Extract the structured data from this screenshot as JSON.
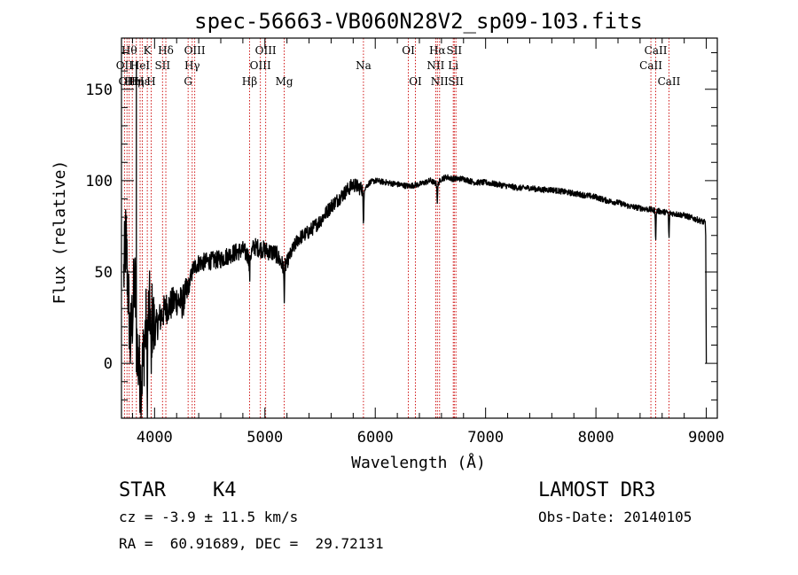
{
  "chart_data": {
    "type": "line",
    "title": "spec-56663-VB060N28V2_sp09-103.fits",
    "xlabel": "Wavelength (Å)",
    "ylabel": "Flux (relative)",
    "xlim": [
      3700,
      9100
    ],
    "ylim": [
      -30,
      178
    ],
    "xticks": [
      4000,
      5000,
      6000,
      7000,
      8000,
      9000
    ],
    "yticks": [
      0,
      50,
      100,
      150
    ],
    "spectrum_keypoints": [
      [
        3700,
        25
      ],
      [
        3740,
        70
      ],
      [
        3780,
        10
      ],
      [
        3820,
        45
      ],
      [
        3850,
        0
      ],
      [
        3880,
        -10
      ],
      [
        3920,
        20
      ],
      [
        3960,
        30
      ],
      [
        4000,
        18
      ],
      [
        4050,
        25
      ],
      [
        4100,
        30
      ],
      [
        4150,
        32
      ],
      [
        4200,
        35
      ],
      [
        4250,
        33
      ],
      [
        4300,
        40
      ],
      [
        4350,
        52
      ],
      [
        4400,
        55
      ],
      [
        4500,
        56
      ],
      [
        4600,
        57
      ],
      [
        4700,
        60
      ],
      [
        4800,
        62
      ],
      [
        4861,
        58
      ],
      [
        4900,
        64
      ],
      [
        5000,
        62
      ],
      [
        5100,
        60
      ],
      [
        5175,
        52
      ],
      [
        5250,
        62
      ],
      [
        5300,
        68
      ],
      [
        5400,
        72
      ],
      [
        5500,
        78
      ],
      [
        5600,
        86
      ],
      [
        5700,
        92
      ],
      [
        5800,
        98
      ],
      [
        5893,
        95
      ],
      [
        5950,
        99
      ],
      [
        6000,
        100
      ],
      [
        6100,
        99
      ],
      [
        6200,
        98
      ],
      [
        6300,
        97
      ],
      [
        6400,
        98
      ],
      [
        6500,
        100
      ],
      [
        6563,
        98
      ],
      [
        6600,
        101
      ],
      [
        6650,
        102
      ],
      [
        6700,
        101
      ],
      [
        6800,
        101
      ],
      [
        6900,
        99
      ],
      [
        7000,
        99
      ],
      [
        7100,
        98
      ],
      [
        7200,
        97
      ],
      [
        7300,
        96
      ],
      [
        7400,
        96
      ],
      [
        7500,
        95
      ],
      [
        7600,
        95
      ],
      [
        7700,
        94
      ],
      [
        7800,
        93
      ],
      [
        7900,
        92
      ],
      [
        8000,
        91
      ],
      [
        8100,
        89
      ],
      [
        8200,
        88
      ],
      [
        8300,
        86
      ],
      [
        8400,
        85
      ],
      [
        8500,
        84
      ],
      [
        8600,
        83
      ],
      [
        8700,
        82
      ],
      [
        8800,
        81
      ],
      [
        8900,
        79
      ],
      [
        8990,
        77
      ]
    ],
    "absorption_dips": [
      {
        "x": 3934,
        "depth": 45
      },
      {
        "x": 3969,
        "depth": 38
      },
      {
        "x": 4861,
        "depth": 12
      },
      {
        "x": 5175,
        "depth": 14
      },
      {
        "x": 5893,
        "depth": 22
      },
      {
        "x": 6563,
        "depth": 10
      },
      {
        "x": 8542,
        "depth": 16
      },
      {
        "x": 8662,
        "depth": 14
      }
    ],
    "spectral_lines": [
      {
        "x": 3727,
        "label": "OII",
        "row": 2
      },
      {
        "x": 3750,
        "label": "OII",
        "row": 3
      },
      {
        "x": 3770,
        "label": "Hθ",
        "row": 1
      },
      {
        "x": 3798,
        "label": "Hη",
        "row": 3
      },
      {
        "x": 3835,
        "label": "Hη",
        "row": 3
      },
      {
        "x": 3869,
        "label": "HeI",
        "row": 2
      },
      {
        "x": 3889,
        "label": "Hε",
        "row": 3
      },
      {
        "x": 3934,
        "label": "K",
        "row": 1
      },
      {
        "x": 3969,
        "label": "H",
        "row": 3
      },
      {
        "x": 4072,
        "label": "SII",
        "row": 2
      },
      {
        "x": 4102,
        "label": "Hδ",
        "row": 1
      },
      {
        "x": 4304,
        "label": "G",
        "row": 3
      },
      {
        "x": 4341,
        "label": "Hγ",
        "row": 2
      },
      {
        "x": 4364,
        "label": "OIII",
        "row": 1
      },
      {
        "x": 4861,
        "label": "Hβ",
        "row": 3
      },
      {
        "x": 4959,
        "label": "OIII",
        "row": 2
      },
      {
        "x": 5007,
        "label": "OIII",
        "row": 1
      },
      {
        "x": 5175,
        "label": "Mg",
        "row": 3
      },
      {
        "x": 5893,
        "label": "Na",
        "row": 2
      },
      {
        "x": 6300,
        "label": "OI",
        "row": 1
      },
      {
        "x": 6364,
        "label": "OI",
        "row": 3
      },
      {
        "x": 6548,
        "label": "NII",
        "row": 2
      },
      {
        "x": 6563,
        "label": "Hα",
        "row": 1
      },
      {
        "x": 6583,
        "label": "NII",
        "row": 3
      },
      {
        "x": 6707,
        "label": "Li",
        "row": 2
      },
      {
        "x": 6716,
        "label": "SII",
        "row": 1
      },
      {
        "x": 6731,
        "label": "SII",
        "row": 3
      },
      {
        "x": 8498,
        "label": "CaII",
        "row": 2
      },
      {
        "x": 8542,
        "label": "CaII",
        "row": 1
      },
      {
        "x": 8662,
        "label": "CaII",
        "row": 3
      }
    ],
    "colors": {
      "spectrum": "#000000",
      "line_markers": "#cc0000",
      "axes": "#000000"
    }
  },
  "info": {
    "object_class": "STAR",
    "subclass": "K4",
    "survey": "LAMOST DR3",
    "cz": "cz = -3.9 ± 11.5 km/s",
    "obs_date": "Obs-Date: 20140105",
    "coords": "RA =  60.91689, DEC =  29.72131"
  }
}
